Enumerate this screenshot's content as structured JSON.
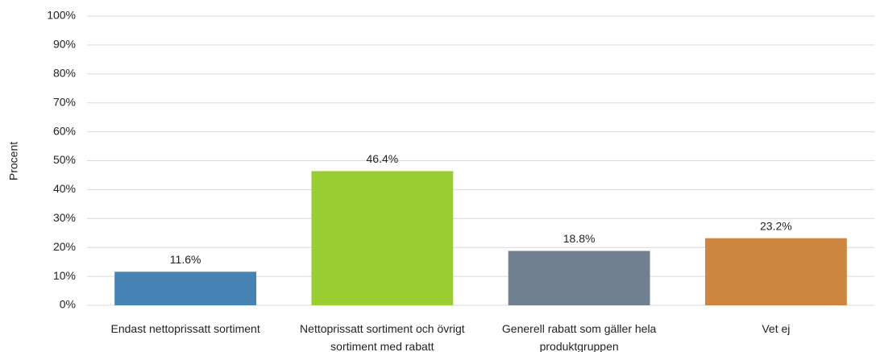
{
  "chart_data": {
    "type": "bar",
    "y_label": "Procent",
    "categories": [
      "Endast nettoprissatt sortiment",
      "Nettoprissatt sortiment och övrigt sortiment med rabatt",
      "Generell rabatt som gäller hela produktgruppen",
      "Vet ej"
    ],
    "values": [
      11.6,
      46.4,
      18.8,
      23.2
    ],
    "value_labels": [
      "11.6%",
      "46.4%",
      "18.8%",
      "23.2%"
    ],
    "colors": [
      "#4682b4",
      "#9acd32",
      "#708090",
      "#cd853f"
    ],
    "ylim": [
      0,
      100
    ],
    "yticks": [
      {
        "value": 0,
        "label": "0%"
      },
      {
        "value": 10,
        "label": "10%"
      },
      {
        "value": 20,
        "label": "20%"
      },
      {
        "value": 30,
        "label": "30%"
      },
      {
        "value": 40,
        "label": "40%"
      },
      {
        "value": 50,
        "label": "50%"
      },
      {
        "value": 60,
        "label": "60%"
      },
      {
        "value": 70,
        "label": "70%"
      },
      {
        "value": 80,
        "label": "80%"
      },
      {
        "value": 90,
        "label": "90%"
      },
      {
        "value": 100,
        "label": "100%"
      }
    ],
    "grid": true
  }
}
